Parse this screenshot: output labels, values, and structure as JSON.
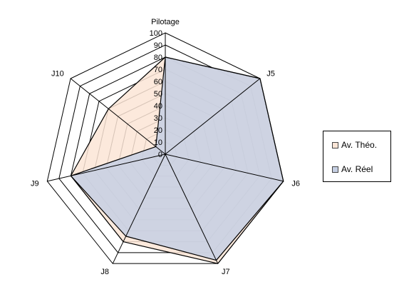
{
  "chart_data": {
    "type": "radar",
    "categories": [
      "Pilotage",
      "J5",
      "J6",
      "J7",
      "J8",
      "J9",
      "J10"
    ],
    "rlim": [
      0,
      100
    ],
    "rticks": [
      0,
      10,
      20,
      30,
      40,
      50,
      60,
      70,
      80,
      90,
      100
    ],
    "grid": true,
    "legend_position": "right",
    "series": [
      {
        "name": "Av. Théo.",
        "values": [
          80,
          100,
          100,
          100,
          80,
          80,
          60
        ],
        "fill": "#fbe5d6",
        "stroke": "#000000"
      },
      {
        "name": "Av. Réel",
        "values": [
          80,
          100,
          100,
          97,
          75,
          80,
          10
        ],
        "fill": "#c5cfe3",
        "stroke": "#000000"
      }
    ]
  }
}
